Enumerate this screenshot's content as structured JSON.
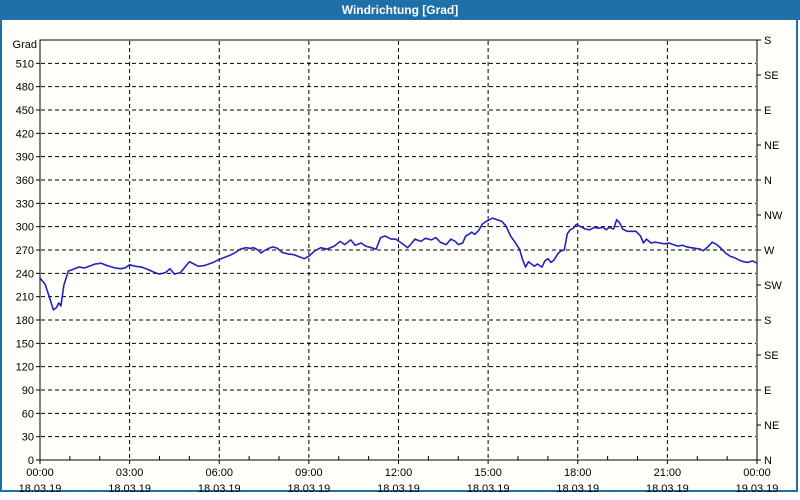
{
  "window": {
    "title": "Windrichtung [Grad]"
  },
  "colors": {
    "titlebar_bg": "#1F6FA8",
    "title_text": "#FFFFFF",
    "window_border": "#1F6FA8",
    "background": "#FFFFFB",
    "grid": "#000000",
    "line": "#2323BB"
  },
  "chart_data": {
    "type": "line",
    "title": "Windrichtung [Grad]",
    "grid": "dashed, vertical every 3h, horizontal every 30 deg",
    "legend": "none",
    "y_left": {
      "unit_label": "Grad",
      "min": 0,
      "max": 540,
      "tick_step": 30,
      "tick_labels": [
        "0",
        "30",
        "60",
        "90",
        "120",
        "150",
        "180",
        "210",
        "240",
        "270",
        "300",
        "330",
        "360",
        "390",
        "420",
        "450",
        "480",
        "510"
      ]
    },
    "y_right": {
      "description": "compass directions every 45 degrees",
      "ticks": [
        {
          "deg": 0,
          "label": "N"
        },
        {
          "deg": 45,
          "label": "NE"
        },
        {
          "deg": 90,
          "label": "E"
        },
        {
          "deg": 135,
          "label": "SE"
        },
        {
          "deg": 180,
          "label": "S"
        },
        {
          "deg": 225,
          "label": "SW"
        },
        {
          "deg": 270,
          "label": "W"
        },
        {
          "deg": 315,
          "label": "NW"
        },
        {
          "deg": 360,
          "label": "N"
        },
        {
          "deg": 405,
          "label": "NE"
        },
        {
          "deg": 450,
          "label": "E"
        },
        {
          "deg": 495,
          "label": "SE"
        },
        {
          "deg": 540,
          "label": "S"
        }
      ]
    },
    "x_axis": {
      "min_hour": 0,
      "max_hour": 24,
      "minor_tick_every_hours": 1,
      "major_ticks": [
        {
          "hour": 0,
          "time": "00:00",
          "date": "18.03.19"
        },
        {
          "hour": 3,
          "time": "03:00",
          "date": "18.03.19"
        },
        {
          "hour": 6,
          "time": "06:00",
          "date": "18.03.19"
        },
        {
          "hour": 9,
          "time": "09:00",
          "date": "18.03.19"
        },
        {
          "hour": 12,
          "time": "12:00",
          "date": "18.03.19"
        },
        {
          "hour": 15,
          "time": "15:00",
          "date": "18.03.19"
        },
        {
          "hour": 18,
          "time": "18:00",
          "date": "18.03.19"
        },
        {
          "hour": 21,
          "time": "21:00",
          "date": "18.03.19"
        },
        {
          "hour": 24,
          "time": "00:00",
          "date": "19.03.19"
        }
      ]
    },
    "series": [
      {
        "name": "Windrichtung",
        "color": "#2323BB",
        "points": [
          [
            0,
            234
          ],
          [
            0.17,
            226
          ],
          [
            0.3,
            211
          ],
          [
            0.45,
            193
          ],
          [
            0.55,
            196
          ],
          [
            0.63,
            202
          ],
          [
            0.7,
            198
          ],
          [
            0.8,
            225
          ],
          [
            0.95,
            243
          ],
          [
            1.1,
            245
          ],
          [
            1.3,
            248
          ],
          [
            1.5,
            247
          ],
          [
            1.7,
            250
          ],
          [
            1.85,
            252
          ],
          [
            2.05,
            253
          ],
          [
            2.25,
            250
          ],
          [
            2.5,
            247
          ],
          [
            2.7,
            246
          ],
          [
            2.85,
            247
          ],
          [
            3.0,
            251
          ],
          [
            3.2,
            249
          ],
          [
            3.4,
            248
          ],
          [
            3.6,
            245
          ],
          [
            3.85,
            241
          ],
          [
            4.0,
            239
          ],
          [
            4.2,
            241
          ],
          [
            4.35,
            246
          ],
          [
            4.5,
            239
          ],
          [
            4.7,
            241
          ],
          [
            4.85,
            248
          ],
          [
            5.0,
            255
          ],
          [
            5.15,
            252
          ],
          [
            5.3,
            249
          ],
          [
            5.5,
            250
          ],
          [
            5.65,
            252
          ],
          [
            5.8,
            254
          ],
          [
            5.95,
            257
          ],
          [
            6.15,
            260
          ],
          [
            6.35,
            263
          ],
          [
            6.55,
            267
          ],
          [
            6.7,
            271
          ],
          [
            6.9,
            273
          ],
          [
            7.05,
            272
          ],
          [
            7.15,
            273
          ],
          [
            7.3,
            270
          ],
          [
            7.4,
            266
          ],
          [
            7.5,
            269
          ],
          [
            7.65,
            272
          ],
          [
            7.8,
            274
          ],
          [
            7.95,
            272
          ],
          [
            8.1,
            267
          ],
          [
            8.3,
            265
          ],
          [
            8.5,
            264
          ],
          [
            8.7,
            261
          ],
          [
            8.85,
            259
          ],
          [
            9.0,
            262
          ],
          [
            9.2,
            269
          ],
          [
            9.4,
            273
          ],
          [
            9.6,
            271
          ],
          [
            9.85,
            275
          ],
          [
            10.05,
            281
          ],
          [
            10.2,
            277
          ],
          [
            10.4,
            283
          ],
          [
            10.55,
            276
          ],
          [
            10.75,
            279
          ],
          [
            10.9,
            275
          ],
          [
            11.1,
            273
          ],
          [
            11.25,
            271
          ],
          [
            11.4,
            286
          ],
          [
            11.55,
            288
          ],
          [
            11.75,
            284
          ],
          [
            11.9,
            284
          ],
          [
            12.1,
            279
          ],
          [
            12.3,
            273
          ],
          [
            12.4,
            277
          ],
          [
            12.55,
            284
          ],
          [
            12.75,
            281
          ],
          [
            12.9,
            285
          ],
          [
            13.1,
            283
          ],
          [
            13.25,
            286
          ],
          [
            13.4,
            280
          ],
          [
            13.6,
            277
          ],
          [
            13.75,
            284
          ],
          [
            13.9,
            281
          ],
          [
            14.0,
            277
          ],
          [
            14.15,
            279
          ],
          [
            14.25,
            288
          ],
          [
            14.35,
            290
          ],
          [
            14.45,
            293
          ],
          [
            14.55,
            290
          ],
          [
            14.7,
            296
          ],
          [
            14.8,
            303
          ],
          [
            14.9,
            306
          ],
          [
            15.05,
            309
          ],
          [
            15.15,
            311
          ],
          [
            15.3,
            309
          ],
          [
            15.45,
            307
          ],
          [
            15.6,
            301
          ],
          [
            15.75,
            288
          ],
          [
            15.9,
            280
          ],
          [
            16.05,
            271
          ],
          [
            16.15,
            258
          ],
          [
            16.25,
            248
          ],
          [
            16.35,
            255
          ],
          [
            16.45,
            252
          ],
          [
            16.55,
            249
          ],
          [
            16.65,
            252
          ],
          [
            16.8,
            248
          ],
          [
            16.9,
            256
          ],
          [
            17.0,
            259
          ],
          [
            17.1,
            254
          ],
          [
            17.2,
            257
          ],
          [
            17.35,
            266
          ],
          [
            17.45,
            269
          ],
          [
            17.55,
            270
          ],
          [
            17.65,
            291
          ],
          [
            17.75,
            296
          ],
          [
            17.85,
            298
          ],
          [
            17.95,
            303
          ],
          [
            18.1,
            300
          ],
          [
            18.25,
            297
          ],
          [
            18.4,
            296
          ],
          [
            18.55,
            299
          ],
          [
            18.7,
            298
          ],
          [
            18.85,
            299
          ],
          [
            18.95,
            296
          ],
          [
            19.05,
            299
          ],
          [
            19.2,
            297
          ],
          [
            19.3,
            309
          ],
          [
            19.4,
            305
          ],
          [
            19.5,
            297
          ],
          [
            19.65,
            294
          ],
          [
            19.8,
            294
          ],
          [
            19.95,
            294
          ],
          [
            20.1,
            288
          ],
          [
            20.2,
            279
          ],
          [
            20.3,
            284
          ],
          [
            20.45,
            279
          ],
          [
            20.6,
            280
          ],
          [
            20.75,
            279
          ],
          [
            20.9,
            278
          ],
          [
            21.05,
            279
          ],
          [
            21.2,
            277
          ],
          [
            21.35,
            275
          ],
          [
            21.5,
            276
          ],
          [
            21.65,
            274
          ],
          [
            21.8,
            273
          ],
          [
            21.95,
            272
          ],
          [
            22.1,
            271
          ],
          [
            22.2,
            269
          ],
          [
            22.35,
            274
          ],
          [
            22.5,
            280
          ],
          [
            22.65,
            277
          ],
          [
            22.8,
            272
          ],
          [
            22.95,
            266
          ],
          [
            23.1,
            262
          ],
          [
            23.25,
            260
          ],
          [
            23.4,
            257
          ],
          [
            23.55,
            255
          ],
          [
            23.7,
            254
          ],
          [
            23.85,
            256
          ],
          [
            24.0,
            253
          ]
        ]
      }
    ]
  }
}
